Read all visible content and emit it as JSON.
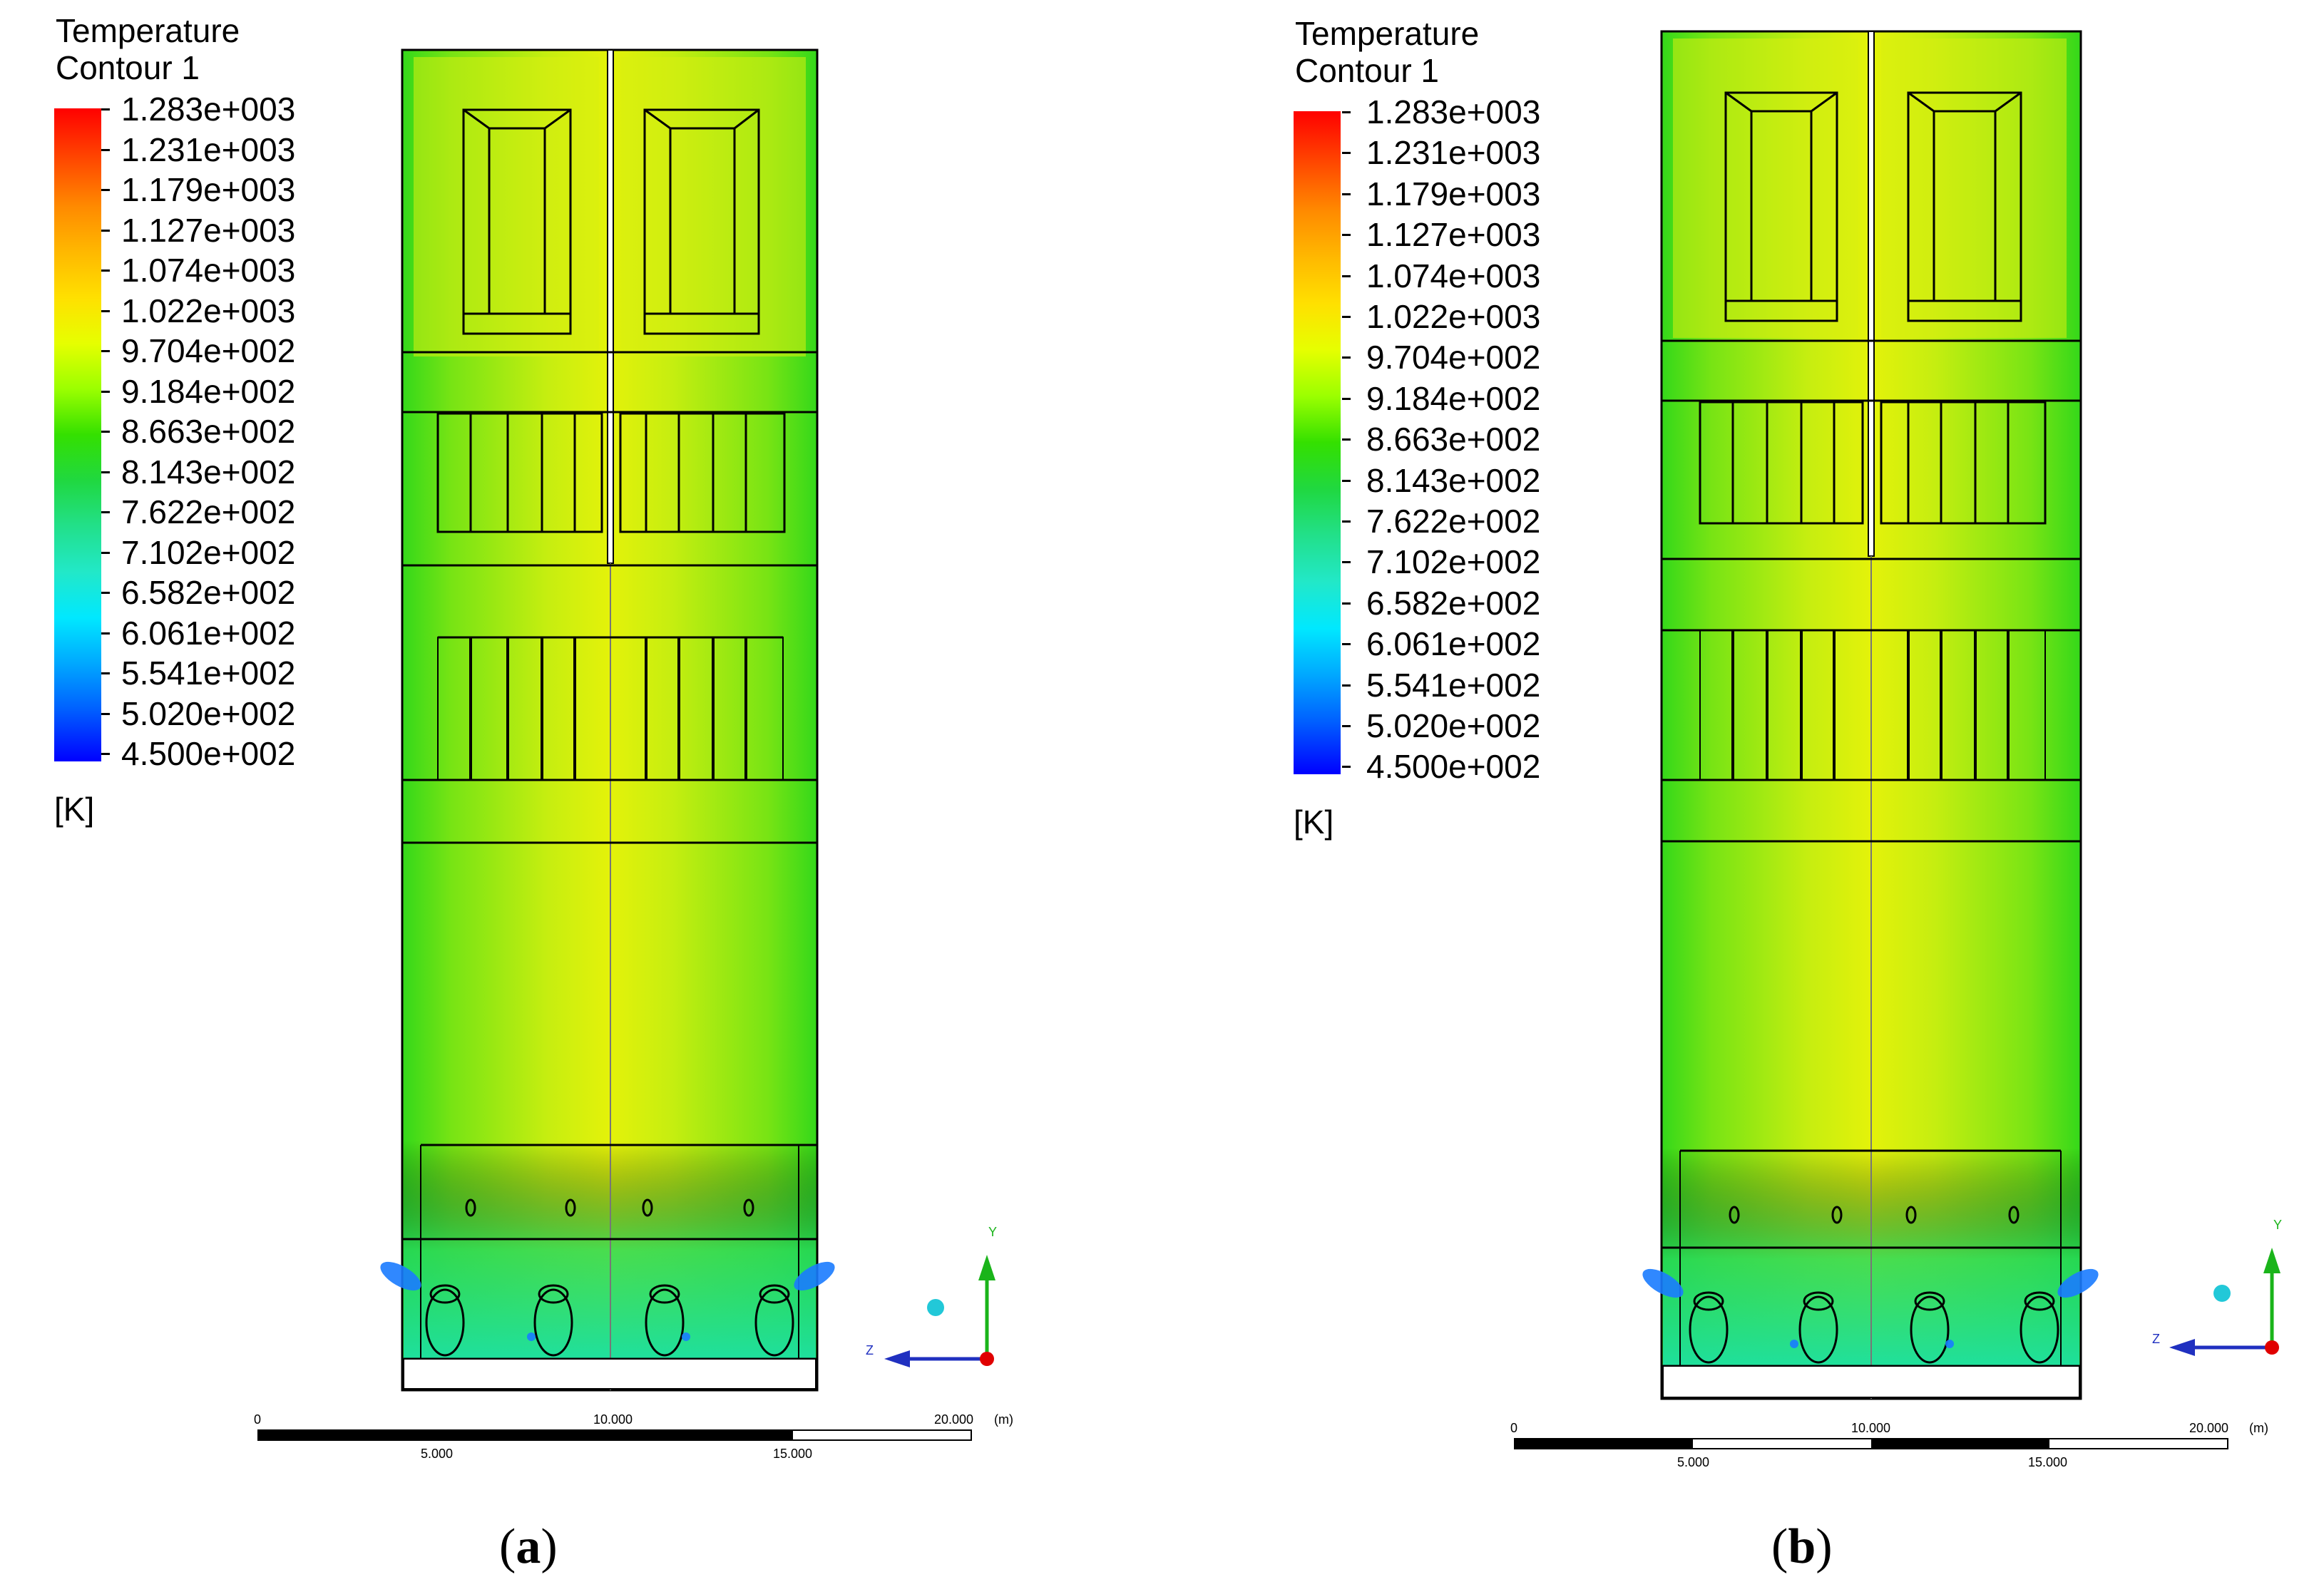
{
  "legend": {
    "title": "Temperature",
    "subtitle": "Contour 1",
    "unit": "[K]",
    "ticks": [
      "1.283e+003",
      "1.231e+003",
      "1.179e+003",
      "1.127e+003",
      "1.074e+003",
      "1.022e+003",
      "9.704e+002",
      "9.184e+002",
      "8.663e+002",
      "8.143e+002",
      "7.622e+002",
      "7.102e+002",
      "6.582e+002",
      "6.061e+002",
      "5.541e+002",
      "5.020e+002",
      "4.500e+002"
    ]
  },
  "scale_bar": {
    "top_labels": [
      "0",
      "10.000",
      "20.000"
    ],
    "unit": "(m)",
    "bottom_labels": [
      "5.000",
      "15.000"
    ]
  },
  "axes": {
    "y": "Y",
    "z": "Z"
  },
  "panels": [
    {
      "caption_open": "(",
      "caption_letter": "a",
      "caption_close": ")"
    },
    {
      "caption_open": "(",
      "caption_letter": "b",
      "caption_close": ")"
    }
  ],
  "colors": {
    "hot": "#ff0000",
    "warm": "#e6ff00",
    "mid": "#34e000",
    "cool": "#00e8ff",
    "cold": "#0000ff"
  }
}
